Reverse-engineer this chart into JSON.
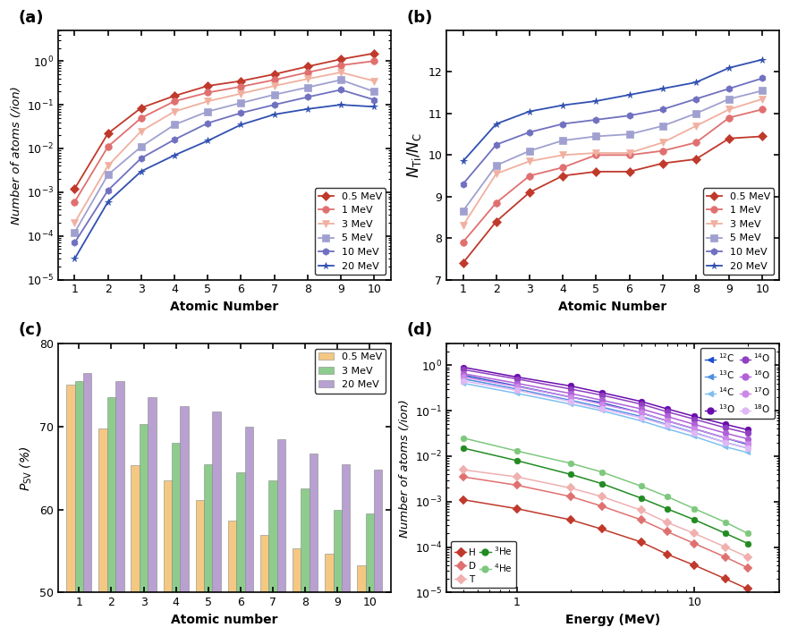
{
  "panel_a": {
    "x": [
      1,
      2,
      3,
      4,
      5,
      6,
      7,
      8,
      9,
      10
    ],
    "series": {
      "0.5 MeV": [
        0.0012,
        0.022,
        0.085,
        0.16,
        0.27,
        0.35,
        0.5,
        0.75,
        1.1,
        1.5
      ],
      "1 MeV": [
        0.0006,
        0.011,
        0.05,
        0.12,
        0.19,
        0.26,
        0.37,
        0.55,
        0.8,
        1.0
      ],
      "3 MeV": [
        0.0002,
        0.004,
        0.025,
        0.07,
        0.12,
        0.18,
        0.27,
        0.39,
        0.55,
        0.35
      ],
      "5 MeV": [
        0.00012,
        0.0025,
        0.011,
        0.035,
        0.07,
        0.11,
        0.17,
        0.25,
        0.37,
        0.2
      ],
      "10 MeV": [
        7e-05,
        0.0011,
        0.006,
        0.016,
        0.038,
        0.065,
        0.1,
        0.15,
        0.22,
        0.13
      ],
      "20 MeV": [
        3e-05,
        0.0006,
        0.003,
        0.007,
        0.015,
        0.035,
        0.06,
        0.08,
        0.1,
        0.09
      ]
    },
    "colors": [
      "#c0392b",
      "#e07070",
      "#f0b0a0",
      "#a0a0d0",
      "#7070c0",
      "#3050b0"
    ],
    "markers": [
      "D",
      "o",
      "v",
      "s",
      "h",
      "*"
    ],
    "ylabel": "Number of atoms (/ion)",
    "xlabel": "Atomic Number",
    "ylim": [
      1e-05,
      5.0
    ],
    "legend_labels": [
      "0.5 MeV",
      "1 MeV",
      "3 MeV",
      "5 MeV",
      "10 MeV",
      "20 MeV"
    ]
  },
  "panel_b": {
    "x": [
      1,
      2,
      3,
      4,
      5,
      6,
      7,
      8,
      9,
      10
    ],
    "series": {
      "0.5 MeV": [
        7.4,
        8.4,
        9.1,
        9.5,
        9.6,
        9.6,
        9.8,
        9.9,
        10.4,
        10.45
      ],
      "1 MeV": [
        7.9,
        8.85,
        9.5,
        9.7,
        10.0,
        10.0,
        10.1,
        10.3,
        10.9,
        11.1
      ],
      "3 MeV": [
        8.3,
        9.55,
        9.85,
        10.0,
        10.05,
        10.05,
        10.3,
        10.7,
        11.1,
        11.35
      ],
      "5 MeV": [
        8.65,
        9.75,
        10.1,
        10.35,
        10.45,
        10.5,
        10.7,
        11.0,
        11.35,
        11.55
      ],
      "10 MeV": [
        9.3,
        10.25,
        10.55,
        10.75,
        10.85,
        10.95,
        11.1,
        11.35,
        11.6,
        11.85
      ],
      "20 MeV": [
        9.85,
        10.75,
        11.05,
        11.2,
        11.3,
        11.45,
        11.6,
        11.75,
        12.1,
        12.3
      ]
    },
    "colors": [
      "#c0392b",
      "#e07070",
      "#f0b0a0",
      "#a0a0d0",
      "#7070c0",
      "#3050b0"
    ],
    "markers": [
      "D",
      "o",
      "v",
      "s",
      "h",
      "*"
    ],
    "ylabel": "$N_{\\mathrm{Ti}}/N_{\\mathrm{C}}$",
    "xlabel": "Atomic Number",
    "ylim": [
      7,
      13
    ],
    "yticks": [
      7,
      8,
      9,
      10,
      11,
      12
    ],
    "legend_labels": [
      "0.5 MeV",
      "1 MeV",
      "3 MeV",
      "5 MeV",
      "10 MeV",
      "20 MeV"
    ]
  },
  "panel_c": {
    "x": [
      1,
      2,
      3,
      4,
      5,
      6,
      7,
      8,
      9,
      10
    ],
    "series": {
      "0.5 MeV": [
        75.0,
        69.8,
        65.3,
        63.5,
        61.1,
        58.7,
        57.0,
        55.3,
        54.7,
        53.3
      ],
      "3 MeV": [
        75.5,
        73.5,
        70.3,
        68.0,
        65.5,
        64.5,
        63.5,
        62.5,
        60.0,
        59.5
      ],
      "20 MeV": [
        76.5,
        75.5,
        73.5,
        72.5,
        71.8,
        70.0,
        68.5,
        66.8,
        65.5,
        64.8
      ]
    },
    "colors": [
      "#f4c882",
      "#8dcc8d",
      "#b8a0d0"
    ],
    "ylabel": "$P_{\\mathrm{SV}}$ (%)",
    "xlabel": "Atomic number",
    "ylim": [
      50,
      80
    ],
    "yticks": [
      50,
      60,
      70,
      80
    ],
    "legend_labels": [
      "0.5 MeV",
      "3 MeV",
      "20 MeV"
    ]
  },
  "panel_d": {
    "x": [
      0.5,
      1.0,
      2.0,
      3.0,
      5.0,
      7.0,
      10.0,
      15.0,
      20.0
    ],
    "series": {
      "H": [
        0.0011,
        0.0007,
        0.0004,
        0.00025,
        0.00013,
        7e-05,
        4e-05,
        2e-05,
        1.2e-05
      ],
      "D": [
        0.0035,
        0.0023,
        0.0013,
        0.0008,
        0.0004,
        0.00022,
        0.00012,
        6e-05,
        3.5e-05
      ],
      "T": [
        0.005,
        0.0035,
        0.002,
        0.0013,
        0.00065,
        0.00035,
        0.0002,
        0.0001,
        6e-05
      ],
      "3He": [
        0.015,
        0.008,
        0.004,
        0.0025,
        0.0012,
        0.0007,
        0.0004,
        0.0002,
        0.00012
      ],
      "4He": [
        0.025,
        0.013,
        0.007,
        0.0045,
        0.0022,
        0.0013,
        0.0007,
        0.00035,
        0.0002
      ],
      "12C": [
        0.6,
        0.35,
        0.2,
        0.15,
        0.09,
        0.06,
        0.04,
        0.025,
        0.018
      ],
      "13C": [
        0.5,
        0.3,
        0.17,
        0.12,
        0.075,
        0.05,
        0.033,
        0.02,
        0.015
      ],
      "14C": [
        0.4,
        0.24,
        0.14,
        0.1,
        0.06,
        0.04,
        0.027,
        0.016,
        0.012
      ],
      "13O": [
        0.9,
        0.55,
        0.35,
        0.25,
        0.16,
        0.11,
        0.075,
        0.05,
        0.038
      ],
      "14O": [
        0.8,
        0.5,
        0.3,
        0.22,
        0.14,
        0.095,
        0.065,
        0.042,
        0.032
      ],
      "16O": [
        0.65,
        0.4,
        0.24,
        0.17,
        0.11,
        0.075,
        0.05,
        0.032,
        0.024
      ],
      "17O": [
        0.55,
        0.34,
        0.2,
        0.14,
        0.09,
        0.06,
        0.04,
        0.025,
        0.019
      ],
      "18O": [
        0.45,
        0.28,
        0.16,
        0.11,
        0.07,
        0.048,
        0.032,
        0.02,
        0.015
      ]
    },
    "colors": {
      "H": "#c0392b",
      "D": "#e07070",
      "T": "#f0b0b0",
      "3He": "#228B22",
      "4He": "#7ec87e",
      "12C": "#1e50c8",
      "13C": "#5090e0",
      "14C": "#80c0f0",
      "13O": "#6a0dad",
      "14O": "#9040c0",
      "16O": "#b060d8",
      "17O": "#cc88e8",
      "18O": "#e0b8f5"
    },
    "markers": {
      "H": "D",
      "D": "D",
      "T": "D",
      "3He": "o",
      "4He": "o",
      "12C": "<",
      "13C": "<",
      "14C": "<",
      "13O": "o",
      "14O": "o",
      "16O": "o",
      "17O": "o",
      "18O": "o"
    },
    "ylabel": "Number of atoms (/ion)",
    "xlabel": "Energy (MeV)",
    "ylim": [
      1e-05,
      3.0
    ],
    "series_order": [
      "H",
      "D",
      "T",
      "3He",
      "4He",
      "12C",
      "13C",
      "14C",
      "13O",
      "14O",
      "16O",
      "17O",
      "18O"
    ],
    "legend_col1_labels": [
      "H",
      "D",
      "T"
    ],
    "legend_col1_colors": [
      "#c0392b",
      "#e07070",
      "#f0b0b0"
    ],
    "legend_col1_markers": [
      "D",
      "D",
      "D"
    ],
    "legend_col2_labels": [
      "$^{3}$He",
      "$^{4}$He"
    ],
    "legend_col2_colors": [
      "#228B22",
      "#7ec87e"
    ],
    "legend_col2_markers": [
      "o",
      "o"
    ],
    "legend_col3_labels": [
      "$^{12}$C",
      "$^{13}$C",
      "$^{14}$C",
      "$^{13}$O"
    ],
    "legend_col3_colors": [
      "#1e50c8",
      "#5090e0",
      "#80c0f0",
      "#6a0dad"
    ],
    "legend_col3_markers": [
      "<",
      "<",
      "<",
      "o"
    ],
    "legend_col4_labels": [
      "$^{14}$O",
      "$^{16}$O",
      "$^{17}$O",
      "$^{18}$O"
    ],
    "legend_col4_colors": [
      "#9040c0",
      "#b060d8",
      "#cc88e8",
      "#e0b8f5"
    ],
    "legend_col4_markers": [
      "o",
      "o",
      "o",
      "o"
    ]
  }
}
